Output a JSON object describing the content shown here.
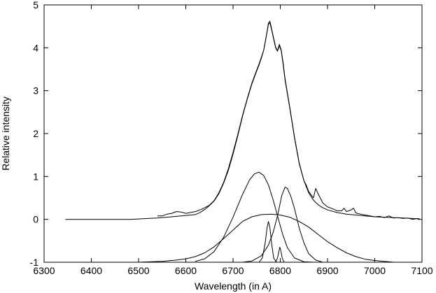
{
  "chart_data": {
    "type": "line",
    "title": "",
    "xlabel": "Wavelength (in A)",
    "ylabel": "Relative intensity",
    "xlim": [
      6300,
      7100
    ],
    "ylim": [
      -1,
      5
    ],
    "xticks": [
      6300,
      6400,
      6500,
      6600,
      6700,
      6800,
      6900,
      7000,
      7100
    ],
    "yticks": [
      -1,
      0,
      1,
      2,
      3,
      4,
      5
    ],
    "grid": false,
    "legend": "none",
    "line_color": "#000000",
    "series": [
      {
        "kind": "observed-spectrum",
        "points": [
          [
            6540,
            0.08
          ],
          [
            6550,
            0.08
          ],
          [
            6560,
            0.12
          ],
          [
            6570,
            0.14
          ],
          [
            6580,
            0.18
          ],
          [
            6590,
            0.17
          ],
          [
            6600,
            0.14
          ],
          [
            6610,
            0.16
          ],
          [
            6620,
            0.18
          ],
          [
            6630,
            0.22
          ],
          [
            6640,
            0.27
          ],
          [
            6650,
            0.33
          ],
          [
            6660,
            0.44
          ],
          [
            6670,
            0.62
          ],
          [
            6680,
            0.86
          ],
          [
            6690,
            1.18
          ],
          [
            6700,
            1.56
          ],
          [
            6710,
            1.98
          ],
          [
            6720,
            2.42
          ],
          [
            6730,
            2.82
          ],
          [
            6740,
            3.18
          ],
          [
            6750,
            3.48
          ],
          [
            6755,
            3.62
          ],
          [
            6760,
            3.78
          ],
          [
            6765,
            3.95
          ],
          [
            6770,
            4.25
          ],
          [
            6775,
            4.58
          ],
          [
            6778,
            4.62
          ],
          [
            6782,
            4.42
          ],
          [
            6786,
            4.22
          ],
          [
            6790,
            4.02
          ],
          [
            6794,
            3.93
          ],
          [
            6798,
            4.08
          ],
          [
            6802,
            3.95
          ],
          [
            6806,
            3.66
          ],
          [
            6810,
            3.28
          ],
          [
            6820,
            2.62
          ],
          [
            6830,
            1.92
          ],
          [
            6840,
            1.32
          ],
          [
            6850,
            0.9
          ],
          [
            6855,
            0.8
          ],
          [
            6860,
            0.65
          ],
          [
            6870,
            0.5
          ],
          [
            6875,
            0.72
          ],
          [
            6880,
            0.6
          ],
          [
            6890,
            0.38
          ],
          [
            6900,
            0.29
          ],
          [
            6910,
            0.25
          ],
          [
            6920,
            0.2
          ],
          [
            6930,
            0.2
          ],
          [
            6935,
            0.26
          ],
          [
            6940,
            0.18
          ],
          [
            6950,
            0.22
          ],
          [
            6955,
            0.26
          ],
          [
            6960,
            0.15
          ],
          [
            6970,
            0.12
          ],
          [
            6980,
            0.1
          ],
          [
            6990,
            0.08
          ],
          [
            7000,
            0.06
          ],
          [
            7010,
            0.07
          ],
          [
            7020,
            0.04
          ],
          [
            7030,
            0.08
          ],
          [
            7040,
            0.03
          ],
          [
            7050,
            0.04
          ],
          [
            7060,
            0.02
          ],
          [
            7070,
            0.03
          ],
          [
            7080,
            0.0
          ],
          [
            7090,
            0.02
          ],
          [
            7095,
            0.01
          ]
        ]
      },
      {
        "kind": "total-fit",
        "points": [
          [
            6345,
            0.0
          ],
          [
            6400,
            0.0
          ],
          [
            6450,
            0.0
          ],
          [
            6480,
            0.0
          ],
          [
            6500,
            0.01
          ],
          [
            6520,
            0.02
          ],
          [
            6540,
            0.03
          ],
          [
            6560,
            0.05
          ],
          [
            6580,
            0.07
          ],
          [
            6600,
            0.09
          ],
          [
            6610,
            0.1
          ],
          [
            6620,
            0.11
          ],
          [
            6630,
            0.16
          ],
          [
            6640,
            0.23
          ],
          [
            6650,
            0.32
          ],
          [
            6660,
            0.43
          ],
          [
            6670,
            0.6
          ],
          [
            6680,
            0.84
          ],
          [
            6690,
            1.14
          ],
          [
            6700,
            1.52
          ],
          [
            6710,
            1.95
          ],
          [
            6720,
            2.4
          ],
          [
            6730,
            2.8
          ],
          [
            6740,
            3.16
          ],
          [
            6750,
            3.46
          ],
          [
            6755,
            3.6
          ],
          [
            6760,
            3.76
          ],
          [
            6765,
            3.95
          ],
          [
            6770,
            4.25
          ],
          [
            6775,
            4.55
          ],
          [
            6778,
            4.58
          ],
          [
            6782,
            4.4
          ],
          [
            6786,
            4.2
          ],
          [
            6790,
            4.0
          ],
          [
            6794,
            3.92
          ],
          [
            6798,
            4.05
          ],
          [
            6802,
            3.93
          ],
          [
            6806,
            3.62
          ],
          [
            6810,
            3.25
          ],
          [
            6820,
            2.6
          ],
          [
            6830,
            1.9
          ],
          [
            6840,
            1.3
          ],
          [
            6850,
            0.9
          ],
          [
            6860,
            0.62
          ],
          [
            6870,
            0.45
          ],
          [
            6880,
            0.34
          ],
          [
            6890,
            0.27
          ],
          [
            6900,
            0.22
          ],
          [
            6920,
            0.16
          ],
          [
            6940,
            0.12
          ],
          [
            6960,
            0.1
          ],
          [
            6980,
            0.08
          ],
          [
            7000,
            0.06
          ],
          [
            7020,
            0.05
          ],
          [
            7040,
            0.04
          ],
          [
            7060,
            0.03
          ],
          [
            7080,
            0.02
          ],
          [
            7095,
            0.01
          ]
        ]
      },
      {
        "kind": "component-blue",
        "points": [
          [
            6620,
            -0.98
          ],
          [
            6640,
            -0.92
          ],
          [
            6660,
            -0.75
          ],
          [
            6680,
            -0.42
          ],
          [
            6700,
            0.05
          ],
          [
            6720,
            0.58
          ],
          [
            6735,
            0.92
          ],
          [
            6745,
            1.06
          ],
          [
            6755,
            1.1
          ],
          [
            6765,
            1.02
          ],
          [
            6775,
            0.8
          ],
          [
            6785,
            0.45
          ],
          [
            6795,
            0.05
          ],
          [
            6805,
            -0.35
          ],
          [
            6815,
            -0.66
          ],
          [
            6830,
            -0.9
          ],
          [
            6850,
            -0.99
          ],
          [
            6870,
            -1.0
          ]
        ]
      },
      {
        "kind": "component-red",
        "points": [
          [
            6720,
            -1.0
          ],
          [
            6740,
            -0.97
          ],
          [
            6760,
            -0.85
          ],
          [
            6775,
            -0.6
          ],
          [
            6785,
            -0.3
          ],
          [
            6795,
            0.12
          ],
          [
            6803,
            0.55
          ],
          [
            6810,
            0.75
          ],
          [
            6815,
            0.72
          ],
          [
            6822,
            0.55
          ],
          [
            6830,
            0.25
          ],
          [
            6840,
            -0.2
          ],
          [
            6850,
            -0.55
          ],
          [
            6860,
            -0.8
          ],
          [
            6875,
            -0.95
          ],
          [
            6890,
            -1.0
          ]
        ]
      },
      {
        "kind": "component-broad",
        "points": [
          [
            6500,
            -1.0
          ],
          [
            6550,
            -0.98
          ],
          [
            6580,
            -0.95
          ],
          [
            6600,
            -0.92
          ],
          [
            6620,
            -0.87
          ],
          [
            6640,
            -0.78
          ],
          [
            6660,
            -0.64
          ],
          [
            6680,
            -0.45
          ],
          [
            6700,
            -0.25
          ],
          [
            6720,
            -0.05
          ],
          [
            6740,
            0.06
          ],
          [
            6760,
            0.11
          ],
          [
            6780,
            0.12
          ],
          [
            6800,
            0.1
          ],
          [
            6820,
            0.05
          ],
          [
            6840,
            -0.05
          ],
          [
            6860,
            -0.18
          ],
          [
            6880,
            -0.35
          ],
          [
            6900,
            -0.52
          ],
          [
            6920,
            -0.66
          ],
          [
            6940,
            -0.78
          ],
          [
            6960,
            -0.87
          ],
          [
            6980,
            -0.93
          ],
          [
            7000,
            -0.96
          ],
          [
            7020,
            -0.98
          ],
          [
            7040,
            -1.0
          ]
        ]
      },
      {
        "kind": "component-narrow-1",
        "points": [
          [
            6755,
            -1.0
          ],
          [
            6762,
            -0.9
          ],
          [
            6768,
            -0.55
          ],
          [
            6772,
            -0.2
          ],
          [
            6775,
            -0.05
          ],
          [
            6778,
            -0.2
          ],
          [
            6782,
            -0.6
          ],
          [
            6786,
            -0.9
          ],
          [
            6792,
            -1.0
          ]
        ]
      },
      {
        "kind": "component-narrow-2",
        "points": [
          [
            6790,
            -1.0
          ],
          [
            6794,
            -0.9
          ],
          [
            6797,
            -0.75
          ],
          [
            6799,
            -0.65
          ],
          [
            6801,
            -0.72
          ],
          [
            6804,
            -0.9
          ],
          [
            6808,
            -1.0
          ]
        ]
      }
    ]
  }
}
